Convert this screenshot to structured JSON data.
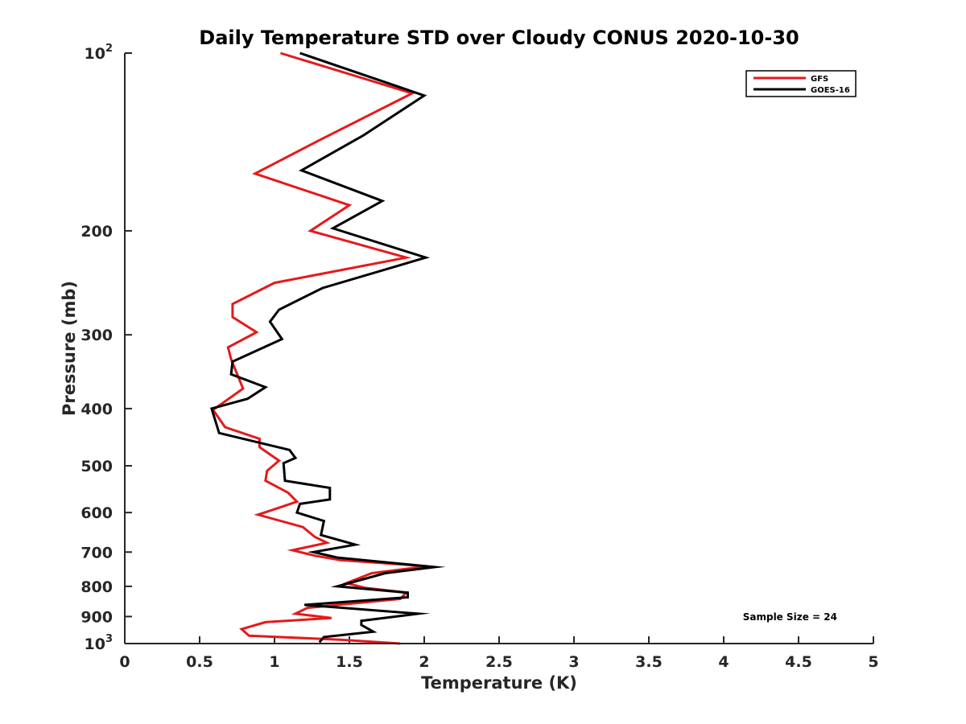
{
  "chart_data": {
    "type": "line",
    "title": "Daily Temperature STD over Cloudy CONUS 2020-10-30",
    "xlabel": "Temperature (K)",
    "ylabel": "Pressure (mb)",
    "xlim": [
      0,
      5
    ],
    "ylim": [
      100,
      1000
    ],
    "y_scale": "log",
    "y_reversed": true,
    "grid": false,
    "legend_position": "top-right",
    "x_ticks": [
      "0",
      "0.5",
      "1",
      "1.5",
      "2",
      "2.5",
      "3",
      "3.5",
      "4",
      "4.5",
      "5"
    ],
    "y_ticks": [
      {
        "value": 100,
        "base": "10",
        "exp": "2"
      },
      {
        "value": 200,
        "label": "200"
      },
      {
        "value": 300,
        "label": "300"
      },
      {
        "value": 400,
        "label": "400"
      },
      {
        "value": 500,
        "label": "500"
      },
      {
        "value": 600,
        "label": "600"
      },
      {
        "value": 700,
        "label": "700"
      },
      {
        "value": 800,
        "label": "800"
      },
      {
        "value": 900,
        "label": "900"
      },
      {
        "value": 1000,
        "base": "10",
        "exp": "3"
      }
    ],
    "annotation": "Sample Size = 24",
    "series": [
      {
        "name": "GFS",
        "color": "#e41a1c",
        "points": [
          [
            1.04,
            100
          ],
          [
            1.92,
            117
          ],
          [
            1.31,
            140
          ],
          [
            0.87,
            160
          ],
          [
            1.5,
            181
          ],
          [
            1.24,
            200
          ],
          [
            1.88,
            222
          ],
          [
            1.0,
            245
          ],
          [
            0.72,
            266
          ],
          [
            0.72,
            280
          ],
          [
            0.88,
            297
          ],
          [
            0.69,
            315
          ],
          [
            0.71,
            330
          ],
          [
            0.79,
            370
          ],
          [
            0.59,
            402
          ],
          [
            0.67,
            430
          ],
          [
            0.9,
            450
          ],
          [
            0.9,
            465
          ],
          [
            1.03,
            490
          ],
          [
            0.95,
            510
          ],
          [
            0.94,
            530
          ],
          [
            1.09,
            555
          ],
          [
            1.15,
            575
          ],
          [
            1.02,
            590
          ],
          [
            0.89,
            605
          ],
          [
            1.19,
            635
          ],
          [
            1.27,
            660
          ],
          [
            1.35,
            675
          ],
          [
            1.12,
            695
          ],
          [
            1.27,
            710
          ],
          [
            1.44,
            722
          ],
          [
            2.02,
            740
          ],
          [
            1.65,
            760
          ],
          [
            1.48,
            790
          ],
          [
            1.61,
            805
          ],
          [
            1.88,
            820
          ],
          [
            1.84,
            840
          ],
          [
            1.22,
            870
          ],
          [
            1.14,
            890
          ],
          [
            1.38,
            905
          ],
          [
            0.94,
            920
          ],
          [
            0.78,
            945
          ],
          [
            0.83,
            970
          ],
          [
            1.44,
            985
          ],
          [
            1.84,
            1000
          ]
        ]
      },
      {
        "name": "GOES-16",
        "color": "#000000",
        "points": [
          [
            1.17,
            100
          ],
          [
            2.0,
            118
          ],
          [
            1.59,
            138
          ],
          [
            1.18,
            158
          ],
          [
            1.72,
            178
          ],
          [
            1.39,
            198
          ],
          [
            2.01,
            222
          ],
          [
            1.32,
            250
          ],
          [
            1.03,
            272
          ],
          [
            0.97,
            285
          ],
          [
            1.05,
            305
          ],
          [
            0.72,
            333
          ],
          [
            0.71,
            350
          ],
          [
            0.94,
            368
          ],
          [
            0.82,
            385
          ],
          [
            0.58,
            400
          ],
          [
            0.63,
            440
          ],
          [
            1.1,
            470
          ],
          [
            1.14,
            485
          ],
          [
            1.06,
            495
          ],
          [
            1.07,
            530
          ],
          [
            1.37,
            545
          ],
          [
            1.37,
            570
          ],
          [
            1.17,
            580
          ],
          [
            1.15,
            600
          ],
          [
            1.33,
            620
          ],
          [
            1.31,
            655
          ],
          [
            1.54,
            680
          ],
          [
            1.26,
            700
          ],
          [
            1.42,
            715
          ],
          [
            2.07,
            742
          ],
          [
            1.74,
            760
          ],
          [
            1.42,
            800
          ],
          [
            1.89,
            820
          ],
          [
            1.89,
            835
          ],
          [
            1.2,
            860
          ],
          [
            1.96,
            890
          ],
          [
            1.58,
            915
          ],
          [
            1.58,
            930
          ],
          [
            1.66,
            955
          ],
          [
            1.33,
            975
          ],
          [
            1.3,
            995
          ]
        ]
      }
    ]
  }
}
